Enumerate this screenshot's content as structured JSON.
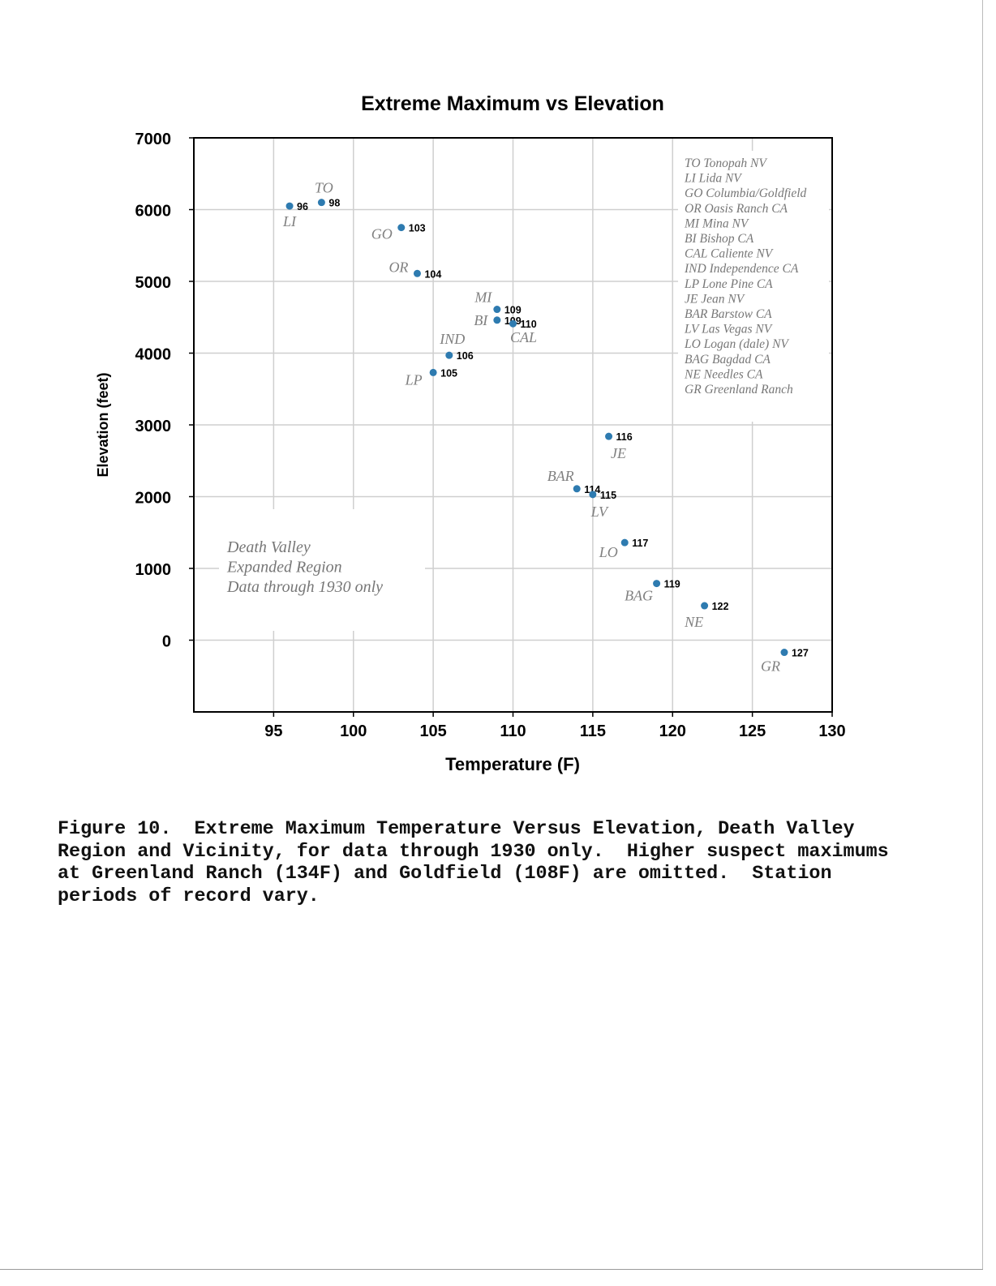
{
  "chart_data": {
    "type": "scatter",
    "title": "Extreme Maximum vs Elevation",
    "xlabel": "Temperature (F)",
    "ylabel": "Elevation (feet)",
    "xlim": [
      90,
      130
    ],
    "ylim": [
      -1000,
      7000
    ],
    "xticks": [
      95,
      100,
      105,
      110,
      115,
      120,
      125,
      130
    ],
    "yticks": [
      0,
      1000,
      2000,
      3000,
      4000,
      5000,
      6000,
      7000
    ],
    "grid": true,
    "point_color": "#2e7bb0",
    "points": [
      {
        "code": "TO",
        "x": 98,
        "y": 6100,
        "value_label": "98"
      },
      {
        "code": "LI",
        "x": 96,
        "y": 6050,
        "value_label": "96"
      },
      {
        "code": "GO",
        "x": 103,
        "y": 5750,
        "value_label": "103"
      },
      {
        "code": "OR",
        "x": 104,
        "y": 5110,
        "value_label": "104"
      },
      {
        "code": "MI",
        "x": 109,
        "y": 4610,
        "value_label": "109"
      },
      {
        "code": "BI",
        "x": 109,
        "y": 4460,
        "value_label": "109"
      },
      {
        "code": "CAL",
        "x": 110,
        "y": 4410,
        "value_label": "110"
      },
      {
        "code": "IND",
        "x": 106,
        "y": 3970,
        "value_label": "106"
      },
      {
        "code": "LP",
        "x": 105,
        "y": 3730,
        "value_label": "105"
      },
      {
        "code": "JE",
        "x": 116,
        "y": 2840,
        "value_label": "116"
      },
      {
        "code": "BAR",
        "x": 114,
        "y": 2110,
        "value_label": "114"
      },
      {
        "code": "LV",
        "x": 115,
        "y": 2030,
        "value_label": "115"
      },
      {
        "code": "LO",
        "x": 117,
        "y": 1360,
        "value_label": "117"
      },
      {
        "code": "BAG",
        "x": 119,
        "y": 790,
        "value_label": "119"
      },
      {
        "code": "NE",
        "x": 122,
        "y": 480,
        "value_label": "122"
      },
      {
        "code": "GR",
        "x": 127,
        "y": -170,
        "value_label": "127"
      }
    ],
    "legend": {
      "placement": "top-right",
      "entries": [
        "TO  Tonopah NV",
        "LI  Lida NV",
        "GO  Columbia/Goldfield",
        "OR  Oasis Ranch CA",
        "MI  Mina NV",
        "BI  Bishop CA",
        "CAL  Caliente NV",
        "IND  Independence CA",
        "LP  Lone Pine  CA",
        "JE  Jean NV",
        "BAR  Barstow CA",
        "LV  Las Vegas NV",
        "LO  Logan (dale) NV",
        "BAG  Bagdad CA",
        "NE   Needles CA",
        "GR  Greenland Ranch"
      ]
    },
    "annotation": [
      "Death Valley",
      "Expanded Region",
      "Data through 1930 only"
    ]
  },
  "caption": {
    "lines": [
      "Figure 10.  Extreme Maximum Temperature Versus Elevation, Death Valley",
      "Region and Vicinity, for data through 1930 only.  Higher suspect maximums",
      "at Greenland Ranch (134F) and Goldfield (108F) are omitted.  Station",
      "periods of record vary."
    ]
  }
}
